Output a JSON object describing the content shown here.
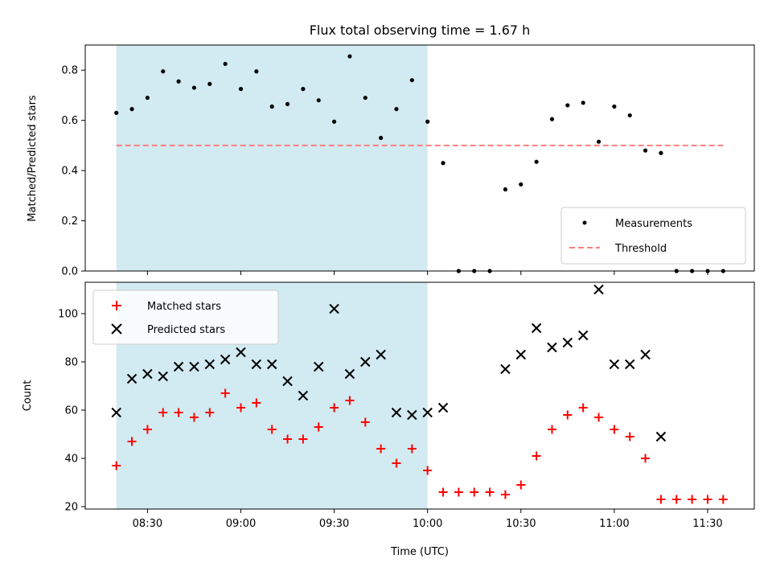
{
  "chart_data": [
    {
      "type": "scatter",
      "title": "Flux total observing time = 1.67 h",
      "xlabel": "",
      "ylabel": "Matched/Predicted stars",
      "ylim": [
        0,
        0.9
      ],
      "yticks": [
        0.0,
        0.2,
        0.4,
        0.6,
        0.8
      ],
      "shaded_region": {
        "x0": "08:20",
        "x1": "10:00",
        "color": "#add8e6"
      },
      "legend": {
        "position": "lower-right",
        "entries": [
          "Measurements",
          "Threshold"
        ]
      },
      "series": [
        {
          "name": "Measurements",
          "marker": "dot",
          "color": "#000000",
          "points": [
            [
              "08:20",
              0.63
            ],
            [
              "08:25",
              0.645
            ],
            [
              "08:30",
              0.69
            ],
            [
              "08:35",
              0.795
            ],
            [
              "08:40",
              0.755
            ],
            [
              "08:45",
              0.73
            ],
            [
              "08:50",
              0.745
            ],
            [
              "08:55",
              0.825
            ],
            [
              "09:00",
              0.725
            ],
            [
              "09:05",
              0.795
            ],
            [
              "09:10",
              0.655
            ],
            [
              "09:15",
              0.665
            ],
            [
              "09:20",
              0.725
            ],
            [
              "09:25",
              0.68
            ],
            [
              "09:30",
              0.595
            ],
            [
              "09:35",
              0.855
            ],
            [
              "09:40",
              0.69
            ],
            [
              "09:45",
              0.53
            ],
            [
              "09:50",
              0.645
            ],
            [
              "09:55",
              0.76
            ],
            [
              "10:00",
              0.595
            ],
            [
              "10:05",
              0.43
            ],
            [
              "10:10",
              0.0
            ],
            [
              "10:15",
              0.0
            ],
            [
              "10:20",
              0.0
            ],
            [
              "10:25",
              0.325
            ],
            [
              "10:30",
              0.345
            ],
            [
              "10:35",
              0.435
            ],
            [
              "10:40",
              0.605
            ],
            [
              "10:45",
              0.66
            ],
            [
              "10:50",
              0.67
            ],
            [
              "10:55",
              0.515
            ],
            [
              "11:00",
              0.655
            ],
            [
              "11:05",
              0.62
            ],
            [
              "11:10",
              0.48
            ],
            [
              "11:15",
              0.47
            ],
            [
              "11:20",
              0.0
            ],
            [
              "11:25",
              0.0
            ],
            [
              "11:30",
              0.0
            ],
            [
              "11:35",
              0.0
            ]
          ]
        },
        {
          "name": "Threshold",
          "marker": "dashed-line",
          "color": "#ff7f7f",
          "points": [
            [
              "08:20",
              0.5
            ],
            [
              "11:35",
              0.5
            ]
          ]
        }
      ]
    },
    {
      "type": "scatter",
      "title": "",
      "xlabel": "Time (UTC)",
      "ylabel": "Count",
      "ylim": [
        19,
        113
      ],
      "yticks": [
        20,
        40,
        60,
        80,
        100
      ],
      "xlim": [
        "08:10",
        "11:45"
      ],
      "xticks": [
        "08:30",
        "09:00",
        "09:30",
        "10:00",
        "10:30",
        "11:00",
        "11:30"
      ],
      "shaded_region": {
        "x0": "08:20",
        "x1": "10:00",
        "color": "#add8e6"
      },
      "legend": {
        "position": "top-left",
        "entries": [
          "Matched stars",
          "Predicted stars"
        ]
      },
      "series": [
        {
          "name": "Matched stars",
          "marker": "plus",
          "color": "#ff0000",
          "points": [
            [
              "08:20",
              37
            ],
            [
              "08:25",
              47
            ],
            [
              "08:30",
              52
            ],
            [
              "08:35",
              59
            ],
            [
              "08:40",
              59
            ],
            [
              "08:45",
              57
            ],
            [
              "08:50",
              59
            ],
            [
              "08:55",
              67
            ],
            [
              "09:00",
              61
            ],
            [
              "09:05",
              63
            ],
            [
              "09:10",
              52
            ],
            [
              "09:15",
              48
            ],
            [
              "09:20",
              48
            ],
            [
              "09:25",
              53
            ],
            [
              "09:30",
              61
            ],
            [
              "09:35",
              64
            ],
            [
              "09:40",
              55
            ],
            [
              "09:45",
              44
            ],
            [
              "09:50",
              38
            ],
            [
              "09:55",
              44
            ],
            [
              "10:00",
              35
            ],
            [
              "10:05",
              26
            ],
            [
              "10:10",
              26
            ],
            [
              "10:15",
              26
            ],
            [
              "10:20",
              26
            ],
            [
              "10:25",
              25
            ],
            [
              "10:30",
              29
            ],
            [
              "10:35",
              41
            ],
            [
              "10:40",
              52
            ],
            [
              "10:45",
              58
            ],
            [
              "10:50",
              61
            ],
            [
              "10:55",
              57
            ],
            [
              "11:00",
              52
            ],
            [
              "11:05",
              49
            ],
            [
              "11:10",
              40
            ],
            [
              "11:15",
              23
            ],
            [
              "11:20",
              23
            ],
            [
              "11:25",
              23
            ],
            [
              "11:30",
              23
            ],
            [
              "11:35",
              23
            ]
          ]
        },
        {
          "name": "Predicted stars",
          "marker": "x",
          "color": "#000000",
          "points": [
            [
              "08:20",
              59
            ],
            [
              "08:25",
              73
            ],
            [
              "08:30",
              75
            ],
            [
              "08:35",
              74
            ],
            [
              "08:40",
              78
            ],
            [
              "08:45",
              78
            ],
            [
              "08:50",
              79
            ],
            [
              "08:55",
              81
            ],
            [
              "09:00",
              84
            ],
            [
              "09:05",
              79
            ],
            [
              "09:10",
              79
            ],
            [
              "09:15",
              72
            ],
            [
              "09:20",
              66
            ],
            [
              "09:25",
              78
            ],
            [
              "09:30",
              102
            ],
            [
              "09:35",
              75
            ],
            [
              "09:40",
              80
            ],
            [
              "09:45",
              83
            ],
            [
              "09:50",
              59
            ],
            [
              "09:55",
              58
            ],
            [
              "10:00",
              59
            ],
            [
              "10:05",
              61
            ],
            [
              "10:25",
              77
            ],
            [
              "10:30",
              83
            ],
            [
              "10:35",
              94
            ],
            [
              "10:40",
              86
            ],
            [
              "10:45",
              88
            ],
            [
              "10:50",
              91
            ],
            [
              "10:55",
              110
            ],
            [
              "11:00",
              79
            ],
            [
              "11:05",
              79
            ],
            [
              "11:10",
              83
            ],
            [
              "11:15",
              49
            ]
          ]
        }
      ]
    }
  ]
}
